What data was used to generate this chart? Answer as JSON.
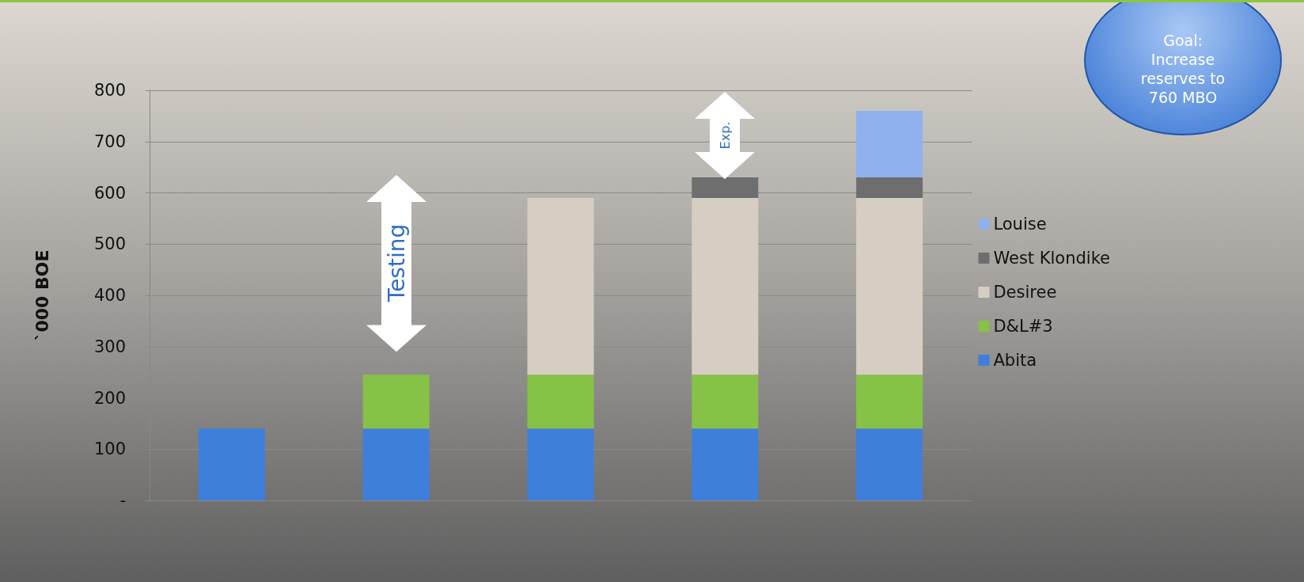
{
  "chart_data": {
    "type": "bar",
    "stacked": true,
    "ylabel": "`000 BOE",
    "categories": [
      null,
      null,
      null,
      null,
      null
    ],
    "series": [
      {
        "name": "Abita",
        "color": "#3f7fdc",
        "values": [
          140,
          140,
          140,
          140,
          140
        ]
      },
      {
        "name": "D&L#3",
        "color": "#86c246",
        "values": [
          null,
          105,
          105,
          105,
          105
        ]
      },
      {
        "name": "Desiree",
        "color": "#d6cec3",
        "values": [
          null,
          null,
          345,
          345,
          345
        ]
      },
      {
        "name": "West Klondike",
        "color": "#6e6e6e",
        "values": [
          null,
          null,
          null,
          40,
          40
        ]
      },
      {
        "name": "Louise",
        "color": "#8fb2ee",
        "values": [
          null,
          null,
          null,
          null,
          130
        ]
      }
    ],
    "ylim": [
      0,
      800
    ],
    "yticks": [
      {
        "value": 0,
        "label": "-"
      },
      100,
      200,
      300,
      400,
      500,
      600,
      700,
      800
    ],
    "grid": "y",
    "legend": "right",
    "annotations": [
      "Testing",
      "Exp.",
      "Goal: Increase reserves to 760 MBO"
    ]
  }
}
